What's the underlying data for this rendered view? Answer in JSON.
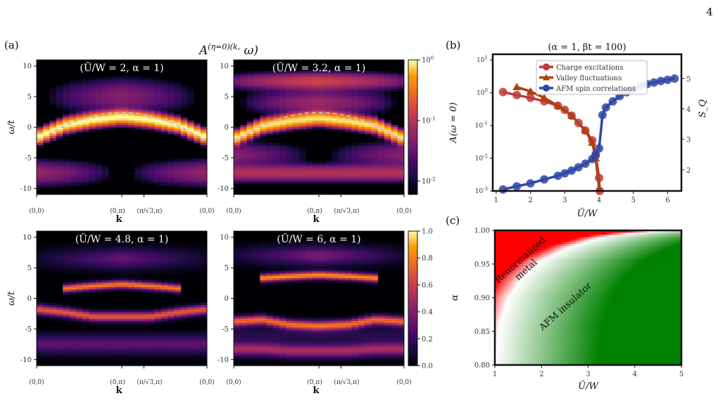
{
  "page_number": "4",
  "panel_labels": {
    "a": "(a)",
    "b": "(b)",
    "c": "(c)"
  },
  "chart_data": [
    {
      "type": "heatmap",
      "panel": "(a)",
      "figure_title": "A^(η=0)(k, ω)",
      "subplots": [
        {
          "title": "(Ũ/W = 2, α = 1)",
          "U_over_W": 2,
          "alpha": 1,
          "color_scale": "log"
        },
        {
          "title": "(Ũ/W = 3.2, α = 1)",
          "U_over_W": 3.2,
          "alpha": 1,
          "color_scale": "log"
        },
        {
          "title": "(Ũ/W = 4.8, α = 1)",
          "U_over_W": 4.8,
          "alpha": 1,
          "color_scale": "linear"
        },
        {
          "title": "(Ũ/W = 6, α = 1)",
          "U_over_W": 6,
          "alpha": 1,
          "color_scale": "linear"
        }
      ],
      "xlabel": "k",
      "ylabel": "ω/t",
      "k_tick_labels": [
        "(0,0)",
        "(0,π)",
        "(π/√3,π)",
        "(0,0)"
      ],
      "ytick_labels": [
        "10",
        "5",
        "0",
        "-5",
        "-10"
      ],
      "ylim": [
        -11,
        11
      ],
      "colorbar_log": {
        "ticks": [
          "10^0",
          "10^-1",
          "10^-2"
        ],
        "range": [
          0.006,
          1
        ]
      },
      "colorbar_linear": {
        "ticks": [
          "1.0",
          "0.8",
          "0.6",
          "0.4",
          "0.2",
          "0.0"
        ],
        "range": [
          0,
          1
        ]
      },
      "colormap": "inferno",
      "dashed_band": {
        "description": "noninteracting dispersion",
        "color": "#c8b0e8"
      },
      "bands": {
        "U2": [
          {
            "center": [
              -1.7,
              0.3,
              1.2,
              1.7,
              1.2,
              0.3,
              -1.7
            ],
            "strength": 1.0,
            "width": 0.55
          }
        ],
        "U3.2": [
          {
            "center": [
              -1.9,
              0.2,
              1.0,
              1.5,
              1.0,
              0.2,
              -1.9
            ],
            "strength": 0.85,
            "width": 0.55
          }
        ],
        "U4.8": [
          {
            "center": [
              -999,
              1.6,
              2.0,
              2.3,
              2.0,
              1.6,
              -999
            ],
            "strength": 0.8,
            "width": 0.45
          },
          {
            "center": [
              -1.8,
              -2.3,
              -3.0,
              -3.0,
              -3.0,
              -2.3,
              -1.8
            ],
            "strength": 0.7,
            "width": 0.55
          }
        ],
        "U6": [
          {
            "center": [
              -999,
              3.3,
              3.6,
              3.8,
              3.6,
              3.3,
              -999
            ],
            "strength": 0.85,
            "width": 0.45
          },
          {
            "center": [
              -3.8,
              -3.5,
              -4.3,
              -4.5,
              -4.3,
              -3.5,
              -3.8
            ],
            "strength": 0.75,
            "width": 0.55
          },
          {
            "center": [
              -8.3,
              -8.3,
              -8.6,
              -8.6,
              -8.6,
              -8.3,
              -8.3
            ],
            "strength": 0.5,
            "width": 0.8
          }
        ]
      }
    },
    {
      "type": "line",
      "panel": "(b)",
      "title": "(α = 1, βt = 100)",
      "xlabel": "Ũ/W",
      "ylabel_left": "A(ω = 0)",
      "ylabel_right": "S_Q",
      "xlim": [
        0.9,
        6.4
      ],
      "xticks": [
        "1",
        "2",
        "3",
        "4",
        "5",
        "6"
      ],
      "ylim_left_log": [
        0.001,
        15
      ],
      "yticks_left": [
        "10^-3",
        "10^-2",
        "10^-1",
        "10^0",
        "10^1"
      ],
      "ylim_right": [
        1.3,
        5.8
      ],
      "yticks_right": [
        "2",
        "3",
        "4",
        "5"
      ],
      "left_axis_color": "#c85a5a",
      "right_axis_color": "#4a5ab0",
      "legend_position": "top-center",
      "series": [
        {
          "name": "Charge excitations",
          "axis": "left",
          "marker": "circle",
          "color": "#bf3a3a",
          "x": [
            1.2,
            1.6,
            2.0,
            2.4,
            2.8,
            3.0,
            3.2,
            3.4,
            3.6,
            3.8,
            3.9,
            4.0,
            4.02
          ],
          "y": [
            1.05,
            0.85,
            0.7,
            0.55,
            0.4,
            0.3,
            0.2,
            0.12,
            0.07,
            0.035,
            0.012,
            0.0025,
            0.001
          ]
        },
        {
          "name": "Valley fluctuations",
          "axis": "left",
          "marker": "triangle",
          "color": "#b04010",
          "x": [
            1.6,
            2.0,
            2.4,
            2.8,
            3.2,
            3.6,
            3.8,
            3.9,
            4.0
          ],
          "y": [
            1.5,
            1.1,
            0.7,
            0.4,
            0.2,
            0.07,
            0.03,
            0.01,
            0.0012
          ]
        },
        {
          "name": "AFM spin correlations",
          "axis": "right",
          "marker": "circle",
          "color": "#2f47a5",
          "x": [
            1.2,
            1.6,
            2.0,
            2.4,
            2.8,
            3.0,
            3.2,
            3.4,
            3.6,
            3.8,
            3.9,
            4.0,
            4.1,
            4.2,
            4.4,
            4.6,
            4.8,
            5.0,
            5.2,
            5.4,
            5.6,
            5.8,
            6.0,
            6.2
          ],
          "y": [
            1.35,
            1.45,
            1.55,
            1.68,
            1.8,
            1.88,
            1.97,
            2.08,
            2.2,
            2.35,
            2.5,
            2.7,
            3.8,
            4.05,
            4.25,
            4.42,
            4.55,
            4.65,
            4.75,
            4.82,
            4.87,
            4.92,
            4.96,
            5.0
          ]
        }
      ]
    },
    {
      "type": "heatmap",
      "panel": "(c)",
      "xlabel": "Ũ/W",
      "ylabel": "α",
      "xlim": [
        1,
        5
      ],
      "ylim": [
        0.8,
        1.0
      ],
      "xticks": [
        "1",
        "2",
        "3",
        "4",
        "5"
      ],
      "yticks": [
        "1.00",
        "0.95",
        "0.90",
        "0.85",
        "0.80"
      ],
      "regions": [
        {
          "label": "Renormalized metal",
          "color": "#ff0000"
        },
        {
          "label": "AFM insulator",
          "color": "#008000"
        }
      ],
      "boundary": {
        "x": [
          1.0,
          1.1,
          1.3,
          1.6,
          2.0,
          2.6,
          3.3,
          4.2,
          5.0
        ],
        "y": [
          0.8,
          0.86,
          0.9,
          0.93,
          0.955,
          0.975,
          0.99,
          0.998,
          1.0
        ]
      }
    }
  ]
}
